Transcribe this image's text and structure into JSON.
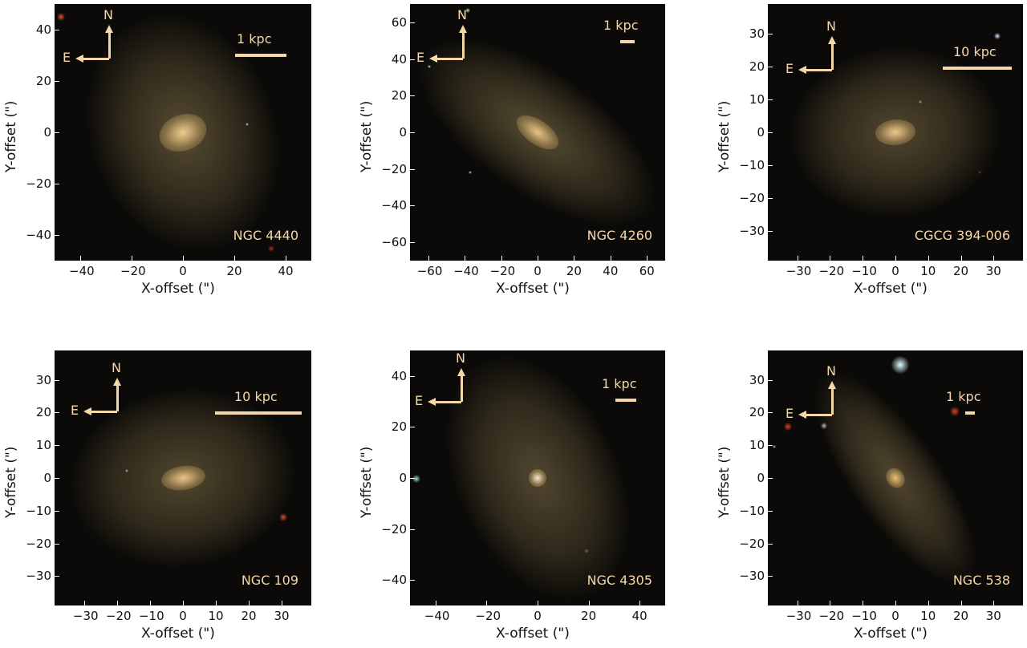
{
  "panels": [
    {
      "name": "NGC 4440",
      "scale": "1 kpc",
      "xticks": [
        "−40",
        "−20",
        "0",
        "20",
        "40"
      ],
      "yticks": [
        "40",
        "20",
        "0",
        "−20",
        "−40"
      ],
      "xlabel": "X-offset (\")",
      "ylabel": "Y-offset (\")",
      "north": "N",
      "east": "E"
    },
    {
      "name": "NGC 4260",
      "scale": "1 kpc",
      "xticks": [
        "−60",
        "−40",
        "−20",
        "0",
        "20",
        "40",
        "60"
      ],
      "yticks": [
        "60",
        "40",
        "20",
        "0",
        "−20",
        "−40",
        "−60"
      ],
      "xlabel": "X-offset (\")",
      "ylabel": "Y-offset (\")",
      "north": "N",
      "east": "E"
    },
    {
      "name": "CGCG 394-006",
      "scale": "10 kpc",
      "xticks": [
        "−30",
        "−20",
        "−10",
        "0",
        "10",
        "20",
        "30"
      ],
      "yticks": [
        "30",
        "20",
        "10",
        "0",
        "−10",
        "−20",
        "−30"
      ],
      "xlabel": "X-offset (\")",
      "ylabel": "Y-offset (\")",
      "north": "N",
      "east": "E"
    },
    {
      "name": "NGC 109",
      "scale": "10 kpc",
      "xticks": [
        "−30",
        "−20",
        "−10",
        "0",
        "10",
        "20",
        "30"
      ],
      "yticks": [
        "30",
        "20",
        "10",
        "0",
        "−10",
        "−20",
        "−30"
      ],
      "xlabel": "X-offset (\")",
      "ylabel": "Y-offset (\")",
      "north": "N",
      "east": "E"
    },
    {
      "name": "NGC 4305",
      "scale": "1 kpc",
      "xticks": [
        "−40",
        "−20",
        "0",
        "20",
        "40"
      ],
      "yticks": [
        "40",
        "20",
        "0",
        "−20",
        "−40"
      ],
      "xlabel": "X-offset (\")",
      "ylabel": "Y-offset (\")",
      "north": "N",
      "east": "E"
    },
    {
      "name": "NGC 538",
      "scale": "1 kpc",
      "xticks": [
        "−30",
        "−20",
        "−10",
        "0",
        "10",
        "20",
        "30"
      ],
      "yticks": [
        "30",
        "20",
        "10",
        "0",
        "−10",
        "−20",
        "−30"
      ],
      "xlabel": "X-offset (\")",
      "ylabel": "Y-offset (\")",
      "north": "N",
      "east": "E"
    }
  ]
}
